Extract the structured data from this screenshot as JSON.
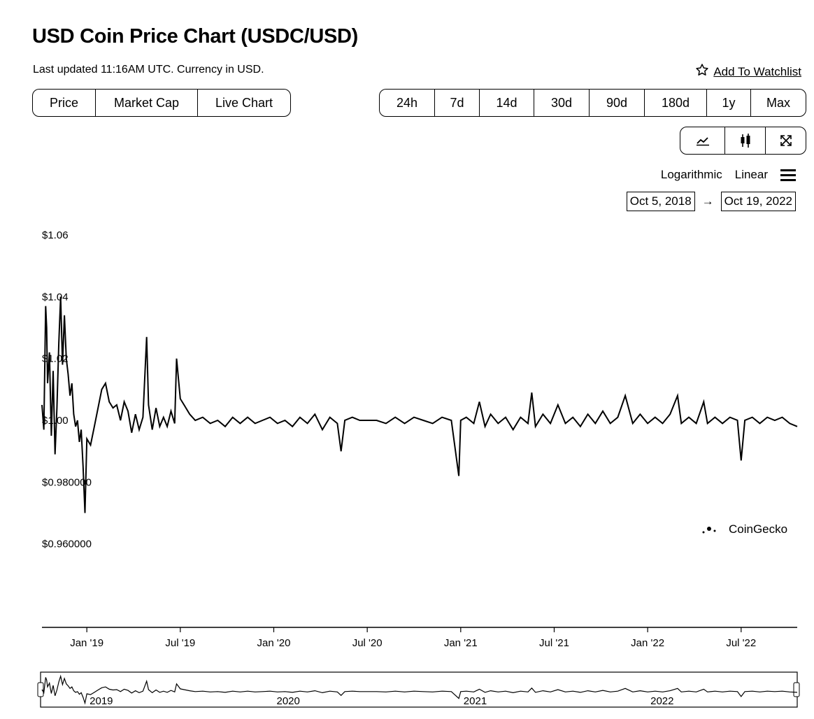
{
  "header": {
    "title": "USD Coin Price Chart (USDC/USD)",
    "updated": "Last updated 11:16AM UTC. Currency in USD.",
    "watchlist_label": "Add To Watchlist",
    "watchlist_icon": "star-icon"
  },
  "tabs": [
    {
      "label": "Price"
    },
    {
      "label": "Market Cap"
    },
    {
      "label": "Live Chart"
    }
  ],
  "ranges": [
    {
      "label": "24h"
    },
    {
      "label": "7d"
    },
    {
      "label": "14d"
    },
    {
      "label": "30d"
    },
    {
      "label": "90d"
    },
    {
      "label": "180d"
    },
    {
      "label": "1y"
    },
    {
      "label": "Max"
    }
  ],
  "chart_types": [
    {
      "icon": "line-chart-icon"
    },
    {
      "icon": "candlestick-icon"
    },
    {
      "icon": "fullscreen-icon"
    }
  ],
  "scale": {
    "log_label": "Logarithmic",
    "linear_label": "Linear",
    "menu_icon": "menu-icon"
  },
  "date_range": {
    "from": "Oct 5, 2018",
    "arrow": "→",
    "to": "Oct 19, 2022"
  },
  "watermark": "CoinGecko",
  "chart_data": {
    "type": "line",
    "title": "USD Coin Price Chart (USDC/USD)",
    "ylim": [
      0.94,
      1.06
    ],
    "y_ticks": [
      {
        "value": 1.06,
        "label": "$1.06"
      },
      {
        "value": 1.04,
        "label": "$1.04"
      },
      {
        "value": 1.02,
        "label": "$1.02"
      },
      {
        "value": 1.0,
        "label": "$1.00"
      },
      {
        "value": 0.98,
        "label": "$0.980000"
      },
      {
        "value": 0.96,
        "label": "$0.960000"
      }
    ],
    "x_range": [
      2018.76,
      2022.8
    ],
    "x_ticks": [
      {
        "value": 2019.0,
        "label": "Jan '19"
      },
      {
        "value": 2019.5,
        "label": "Jul '19"
      },
      {
        "value": 2020.0,
        "label": "Jan '20"
      },
      {
        "value": 2020.5,
        "label": "Jul '20"
      },
      {
        "value": 2021.0,
        "label": "Jan '21"
      },
      {
        "value": 2021.5,
        "label": "Jul '21"
      },
      {
        "value": 2022.0,
        "label": "Jan '22"
      },
      {
        "value": 2022.5,
        "label": "Jul '22"
      }
    ],
    "navigator_labels": [
      {
        "value": 2019.0,
        "label": "2019"
      },
      {
        "value": 2020.0,
        "label": "2020"
      },
      {
        "value": 2021.0,
        "label": "2021"
      },
      {
        "value": 2022.0,
        "label": "2022"
      }
    ],
    "series": [
      {
        "name": "USDC/USD",
        "points": [
          [
            2018.76,
            1.005
          ],
          [
            2018.77,
            0.997
          ],
          [
            2018.78,
            1.037
          ],
          [
            2018.785,
            1.03
          ],
          [
            2018.79,
            1.012
          ],
          [
            2018.8,
            1.022
          ],
          [
            2018.81,
            0.995
          ],
          [
            2018.82,
            1.016
          ],
          [
            2018.83,
            0.989
          ],
          [
            2018.84,
            1.004
          ],
          [
            2018.85,
            1.025
          ],
          [
            2018.86,
            1.04
          ],
          [
            2018.87,
            1.018
          ],
          [
            2018.88,
            1.034
          ],
          [
            2018.89,
            1.02
          ],
          [
            2018.9,
            1.015
          ],
          [
            2018.91,
            1.008
          ],
          [
            2018.92,
            1.012
          ],
          [
            2018.93,
            1.002
          ],
          [
            2018.94,
            0.998
          ],
          [
            2018.95,
            1.0
          ],
          [
            2018.96,
            0.993
          ],
          [
            2018.97,
            0.997
          ],
          [
            2018.98,
            0.985
          ],
          [
            2018.99,
            0.97
          ],
          [
            2019.0,
            0.994
          ],
          [
            2019.02,
            0.992
          ],
          [
            2019.04,
            0.998
          ],
          [
            2019.06,
            1.004
          ],
          [
            2019.08,
            1.01
          ],
          [
            2019.1,
            1.012
          ],
          [
            2019.12,
            1.006
          ],
          [
            2019.14,
            1.004
          ],
          [
            2019.16,
            1.005
          ],
          [
            2019.18,
            1.0
          ],
          [
            2019.2,
            1.006
          ],
          [
            2019.22,
            1.003
          ],
          [
            2019.24,
            0.996
          ],
          [
            2019.26,
            1.002
          ],
          [
            2019.28,
            0.997
          ],
          [
            2019.3,
            1.001
          ],
          [
            2019.32,
            1.027
          ],
          [
            2019.33,
            1.005
          ],
          [
            2019.35,
            0.997
          ],
          [
            2019.37,
            1.004
          ],
          [
            2019.39,
            0.998
          ],
          [
            2019.41,
            1.001
          ],
          [
            2019.43,
            0.998
          ],
          [
            2019.45,
            1.003
          ],
          [
            2019.47,
            0.999
          ],
          [
            2019.48,
            1.02
          ],
          [
            2019.5,
            1.007
          ],
          [
            2019.52,
            1.005
          ],
          [
            2019.55,
            1.002
          ],
          [
            2019.58,
            1.0
          ],
          [
            2019.62,
            1.001
          ],
          [
            2019.66,
            0.999
          ],
          [
            2019.7,
            1.0
          ],
          [
            2019.74,
            0.998
          ],
          [
            2019.78,
            1.001
          ],
          [
            2019.82,
            0.999
          ],
          [
            2019.86,
            1.001
          ],
          [
            2019.9,
            0.999
          ],
          [
            2019.94,
            1.0
          ],
          [
            2019.98,
            1.001
          ],
          [
            2020.02,
            0.999
          ],
          [
            2020.06,
            1.0
          ],
          [
            2020.1,
            0.998
          ],
          [
            2020.14,
            1.001
          ],
          [
            2020.18,
            0.999
          ],
          [
            2020.22,
            1.002
          ],
          [
            2020.26,
            0.997
          ],
          [
            2020.3,
            1.001
          ],
          [
            2020.34,
            0.999
          ],
          [
            2020.36,
            0.99
          ],
          [
            2020.38,
            1.0
          ],
          [
            2020.42,
            1.001
          ],
          [
            2020.46,
            1.0
          ],
          [
            2020.5,
            1.0
          ],
          [
            2020.55,
            1.0
          ],
          [
            2020.6,
            0.999
          ],
          [
            2020.65,
            1.001
          ],
          [
            2020.7,
            0.999
          ],
          [
            2020.75,
            1.001
          ],
          [
            2020.8,
            1.0
          ],
          [
            2020.85,
            0.999
          ],
          [
            2020.9,
            1.001
          ],
          [
            2020.95,
            1.0
          ],
          [
            2020.99,
            0.982
          ],
          [
            2021.0,
            1.0
          ],
          [
            2021.03,
            1.001
          ],
          [
            2021.07,
            0.999
          ],
          [
            2021.1,
            1.006
          ],
          [
            2021.13,
            0.998
          ],
          [
            2021.16,
            1.002
          ],
          [
            2021.2,
            0.999
          ],
          [
            2021.24,
            1.001
          ],
          [
            2021.28,
            0.997
          ],
          [
            2021.32,
            1.001
          ],
          [
            2021.36,
            0.999
          ],
          [
            2021.38,
            1.009
          ],
          [
            2021.4,
            0.998
          ],
          [
            2021.44,
            1.002
          ],
          [
            2021.48,
            0.999
          ],
          [
            2021.52,
            1.005
          ],
          [
            2021.56,
            0.999
          ],
          [
            2021.6,
            1.001
          ],
          [
            2021.64,
            0.998
          ],
          [
            2021.68,
            1.002
          ],
          [
            2021.72,
            0.999
          ],
          [
            2021.76,
            1.003
          ],
          [
            2021.8,
            0.999
          ],
          [
            2021.84,
            1.001
          ],
          [
            2021.88,
            1.008
          ],
          [
            2021.92,
            0.999
          ],
          [
            2021.96,
            1.002
          ],
          [
            2022.0,
            0.999
          ],
          [
            2022.04,
            1.001
          ],
          [
            2022.08,
            0.999
          ],
          [
            2022.12,
            1.002
          ],
          [
            2022.16,
            1.008
          ],
          [
            2022.18,
            0.999
          ],
          [
            2022.22,
            1.001
          ],
          [
            2022.26,
            0.999
          ],
          [
            2022.3,
            1.006
          ],
          [
            2022.32,
            0.999
          ],
          [
            2022.36,
            1.001
          ],
          [
            2022.4,
            0.999
          ],
          [
            2022.44,
            1.001
          ],
          [
            2022.48,
            1.0
          ],
          [
            2022.5,
            0.987
          ],
          [
            2022.52,
            1.0
          ],
          [
            2022.56,
            1.001
          ],
          [
            2022.6,
            0.999
          ],
          [
            2022.64,
            1.001
          ],
          [
            2022.68,
            1.0
          ],
          [
            2022.72,
            1.001
          ],
          [
            2022.76,
            0.999
          ],
          [
            2022.8,
            0.998
          ]
        ]
      }
    ]
  }
}
